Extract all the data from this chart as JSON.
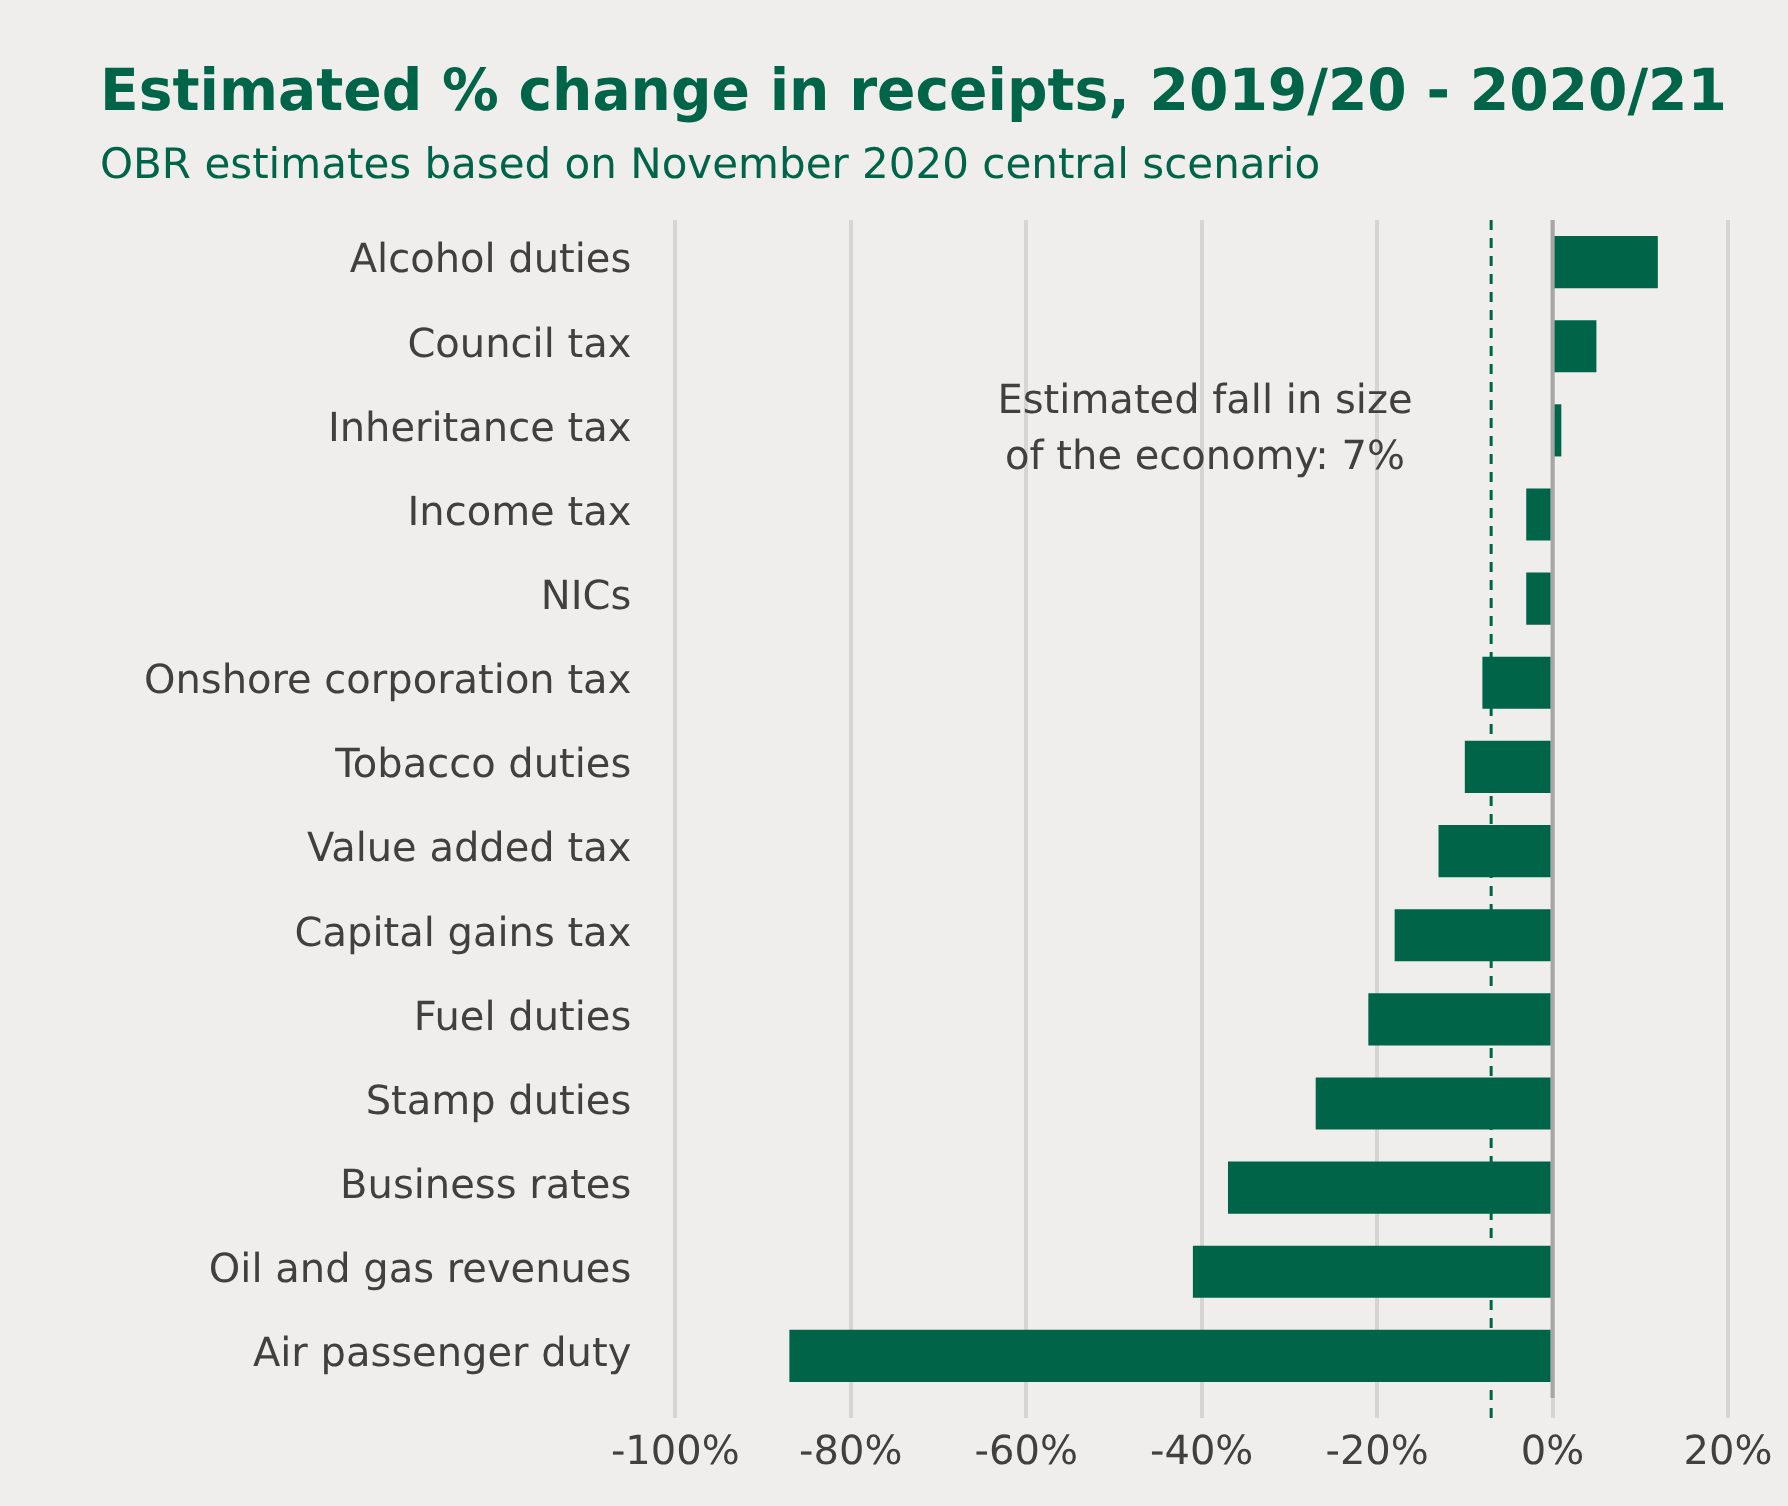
{
  "chart_data": {
    "type": "bar",
    "orientation": "horizontal",
    "title": "Estimated % change in receipts, 2019/20 - 2020/21",
    "subtitle": "OBR estimates based on November 2020 central scenario",
    "categories": [
      "Alcohol duties",
      "Council tax",
      "Inheritance tax",
      "Income tax",
      "NICs",
      "Onshore corporation tax",
      "Tobacco duties",
      "Value added tax",
      "Capital gains tax",
      "Fuel duties",
      "Stamp duties",
      "Business rates",
      "Oil and gas revenues",
      "Air passenger duty"
    ],
    "values": [
      12,
      5,
      1,
      -3,
      -3,
      -8,
      -10,
      -13,
      -18,
      -21,
      -27,
      -37,
      -41,
      -87
    ],
    "color": "#006548",
    "xlim": [
      -100,
      20
    ],
    "xticks": [
      {
        "value": -100,
        "label": "-100%"
      },
      {
        "value": -80,
        "label": "-80%"
      },
      {
        "value": -60,
        "label": "-60%"
      },
      {
        "value": -40,
        "label": "-40%"
      },
      {
        "value": -20,
        "label": "-20%"
      },
      {
        "value": 0,
        "label": "0%"
      },
      {
        "value": 20,
        "label": "20%"
      }
    ],
    "grid": "x",
    "legend": false,
    "ref_lines": [
      {
        "axis": "x",
        "value": -7,
        "color": "#006548",
        "line_style": "dashed"
      }
    ],
    "annotations": [
      "Estimated fall in size of the economy: 7%"
    ]
  }
}
